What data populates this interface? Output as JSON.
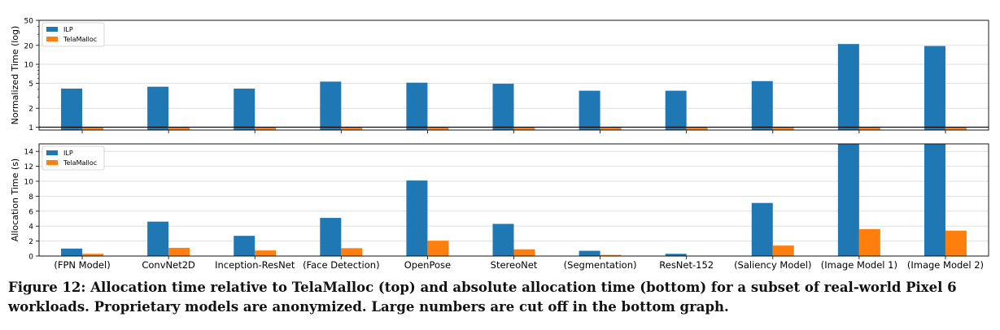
{
  "caption": "Figure 12: Allocation time relative to TelaMalloc (top) and absolute allocation time (bottom) for a subset of real-world Pixel 6 workloads. Proprietary models are anonymized. Large numbers are cut off in the bottom graph.",
  "colors": {
    "ILP": "#1f77b4",
    "TelaMalloc": "#ff7f0e"
  },
  "chart_data": [
    {
      "type": "bar",
      "panel": "top",
      "ylabel": "Normalized Time (log)",
      "yscale": "log",
      "ylim": [
        0.9,
        50
      ],
      "yticks": [
        1,
        2,
        5,
        10,
        20,
        50
      ],
      "grid": true,
      "legend": "top-left",
      "reference_line": 1,
      "categories": [
        "(FPN Model)",
        "ConvNet2D",
        "Inception-ResNet",
        "(Face Detection)",
        "OpenPose",
        "StereoNet",
        "(Segmentation)",
        "ResNet-152",
        "(Saliency Model)",
        "(Image Model 1)",
        "(Image Model 2)"
      ],
      "series": [
        {
          "name": "ILP",
          "values": [
            4.1,
            4.4,
            4.1,
            5.3,
            5.1,
            4.9,
            3.8,
            3.8,
            5.4,
            21.0,
            19.5
          ]
        },
        {
          "name": "TelaMalloc",
          "values": [
            1,
            1,
            1,
            1,
            1,
            1,
            1,
            1,
            1,
            1,
            1
          ]
        }
      ]
    },
    {
      "type": "bar",
      "panel": "bottom",
      "ylabel": "Allocation Time (s)",
      "ylim": [
        0,
        15
      ],
      "yticks": [
        0,
        2,
        4,
        6,
        8,
        10,
        12,
        14
      ],
      "grid": true,
      "legend": "top-left",
      "categories": [
        "(FPN Model)",
        "ConvNet2D",
        "Inception-ResNet",
        "(Face Detection)",
        "OpenPose",
        "StereoNet",
        "(Segmentation)",
        "ResNet-152",
        "(Saliency Model)",
        "(Image Model 1)",
        "(Image Model 2)"
      ],
      "series": [
        {
          "name": "ILP",
          "values": [
            1.0,
            4.6,
            2.7,
            5.1,
            10.1,
            4.3,
            0.7,
            0.3,
            7.1,
            15,
            15
          ]
        },
        {
          "name": "TelaMalloc",
          "values": [
            0.3,
            1.1,
            0.75,
            1.05,
            2.05,
            0.9,
            0.15,
            0.05,
            1.4,
            3.6,
            3.4
          ]
        }
      ]
    }
  ]
}
